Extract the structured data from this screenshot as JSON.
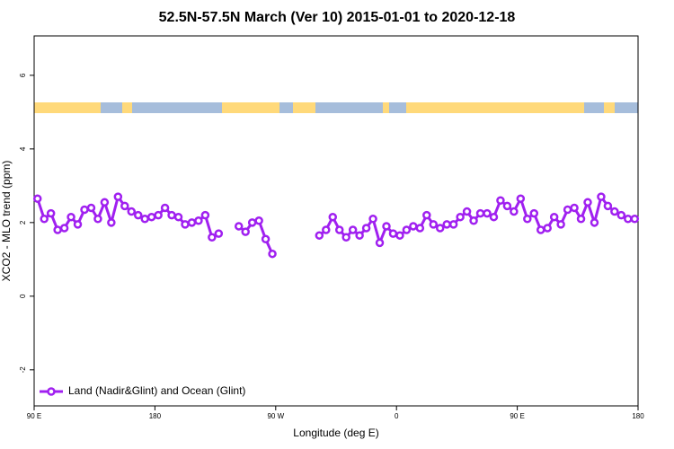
{
  "chart_data": {
    "type": "line",
    "title": "52.5N-57.5N March (Ver 10)   2015-01-01 to 2020-12-18",
    "x_label": "Longitude (deg E)",
    "y_label": "XCO2 - MLO trend (ppm)",
    "x": [
      92.5,
      97.5,
      102.5,
      107.5,
      112.5,
      117.5,
      122.5,
      127.5,
      132.5,
      137.5,
      142.5,
      147.5,
      152.5,
      157.5,
      162.5,
      167.5,
      172.5,
      177.5,
      182.5,
      187.5,
      192.5,
      197.5,
      202.5,
      207.5,
      212.5,
      217.5,
      222.5,
      227.5,
      232.5,
      237.5,
      242.5,
      247.5,
      252.5,
      257.5,
      262.5,
      267.5,
      272.5,
      277.5,
      282.5,
      287.5,
      292.5,
      297.5,
      302.5,
      307.5,
      312.5,
      317.5,
      322.5,
      327.5,
      332.5,
      337.5,
      342.5,
      347.5,
      352.5,
      357.5,
      362.5,
      367.5,
      372.5,
      377.5,
      382.5,
      387.5,
      392.5,
      397.5,
      402.5,
      407.5,
      412.5,
      417.5,
      422.5,
      427.5,
      432.5,
      437.5,
      442.5,
      447.5,
      452.5,
      457.5,
      462.5,
      467.5,
      472.5,
      477.5,
      482.5,
      487.5,
      492.5,
      497.5,
      502.5,
      507.5,
      512.5,
      517.5,
      522.5,
      527.5,
      532.5,
      537.5
    ],
    "series": [
      {
        "name": "Land (Nadir&Glint) and Ocean (Glint)",
        "color": "#a020f0",
        "values": [
          2.65,
          2.1,
          2.25,
          1.8,
          1.85,
          2.15,
          1.95,
          2.35,
          2.4,
          2.1,
          2.55,
          2.0,
          2.7,
          2.45,
          2.3,
          2.2,
          2.1,
          2.15,
          2.2,
          2.4,
          2.2,
          2.15,
          1.95,
          2.0,
          2.05,
          2.2,
          1.6,
          1.7,
          null,
          null,
          1.9,
          1.75,
          2.0,
          2.05,
          1.55,
          1.15,
          null,
          null,
          null,
          null,
          null,
          null,
          1.65,
          1.8,
          2.15,
          1.8,
          1.6,
          1.8,
          1.65,
          1.85,
          2.1,
          1.45,
          1.9,
          1.7,
          1.65,
          1.8,
          1.9,
          1.85,
          2.2,
          1.95,
          1.85,
          1.95,
          1.95,
          2.15,
          2.3,
          2.05,
          2.25,
          2.25,
          2.15,
          2.6,
          2.45,
          2.3,
          2.65,
          2.1,
          2.25,
          1.8,
          1.85,
          2.15,
          1.95,
          2.35,
          2.4,
          2.1,
          2.55,
          2.0,
          2.7,
          2.45,
          2.3,
          2.2,
          2.1,
          2.1
        ]
      }
    ],
    "xlim": [
      90,
      540
    ],
    "xticks": [
      {
        "value": 90,
        "label": "90 E"
      },
      180,
      {
        "value": 270,
        "label": "90 W"
      },
      {
        "value": 360,
        "label": "0"
      },
      {
        "value": 450,
        "label": "90 E"
      },
      {
        "value": 540,
        "label": "180"
      }
    ],
    "ylim": [
      -2.98,
      7.07
    ],
    "yticks": [
      -2,
      0,
      2,
      4,
      6
    ],
    "legend": "bottom-left"
  }
}
